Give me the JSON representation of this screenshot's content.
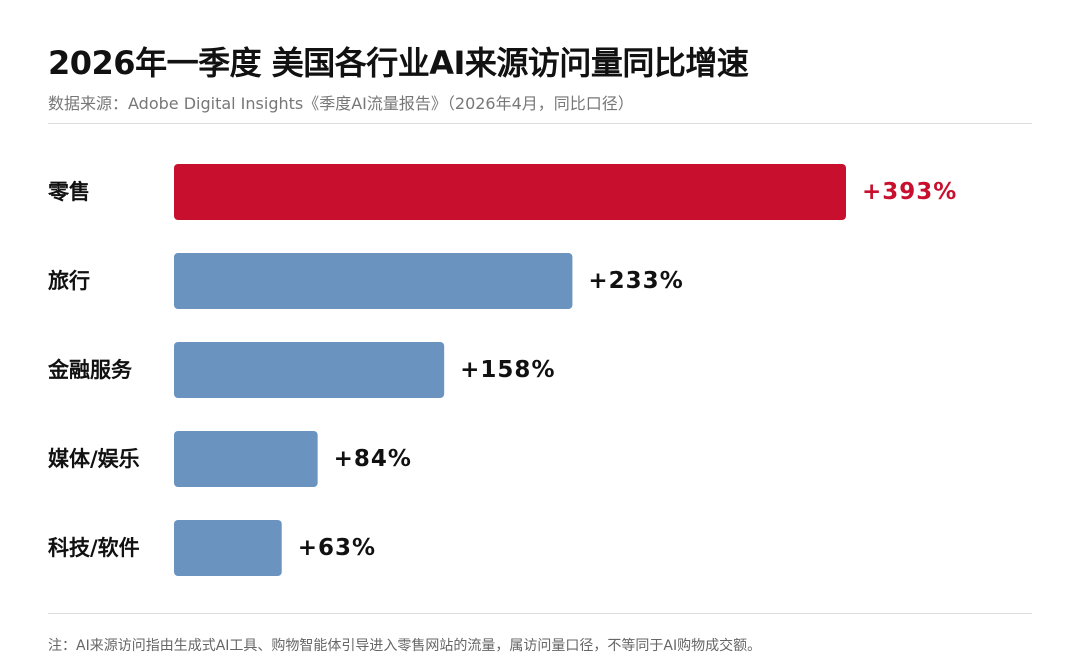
{
  "header": {
    "title": "2026年一季度 美国各行业AI来源访问量同比增速",
    "subtitle": "数据来源：Adobe Digital Insights《季度AI流量报告》（2026年4月，同比口径）"
  },
  "footer": {
    "note": "注：AI来源访问指由生成式AI工具、购物智能体引导进入零售网站的流量，属访问量口径，不等同于AI购物成交额。"
  },
  "chart_data": {
    "type": "bar",
    "orientation": "horizontal",
    "title": "2026年一季度 美国各行业AI来源访问量同比增速",
    "subtitle": "数据来源：Adobe Digital Insights《季度AI流量报告》（2026年4月，同比口径）",
    "categories": [
      "零售",
      "旅行",
      "金融服务",
      "媒体/娱乐",
      "科技/软件"
    ],
    "values": [
      393,
      233,
      158,
      84,
      63
    ],
    "value_labels": [
      "+393%",
      "+233%",
      "+158%",
      "+84%",
      "+63%"
    ],
    "unit": "%",
    "xlabel": "",
    "ylabel": "",
    "xlim": [
      0,
      393
    ],
    "grid": false,
    "legend": "none",
    "highlight_index": 0,
    "colors": {
      "highlight": "#C8102E",
      "default": "#6A93C0",
      "category_label": "#111111",
      "value_label_default": "#111111",
      "value_label_highlight": "#C8102E"
    }
  }
}
